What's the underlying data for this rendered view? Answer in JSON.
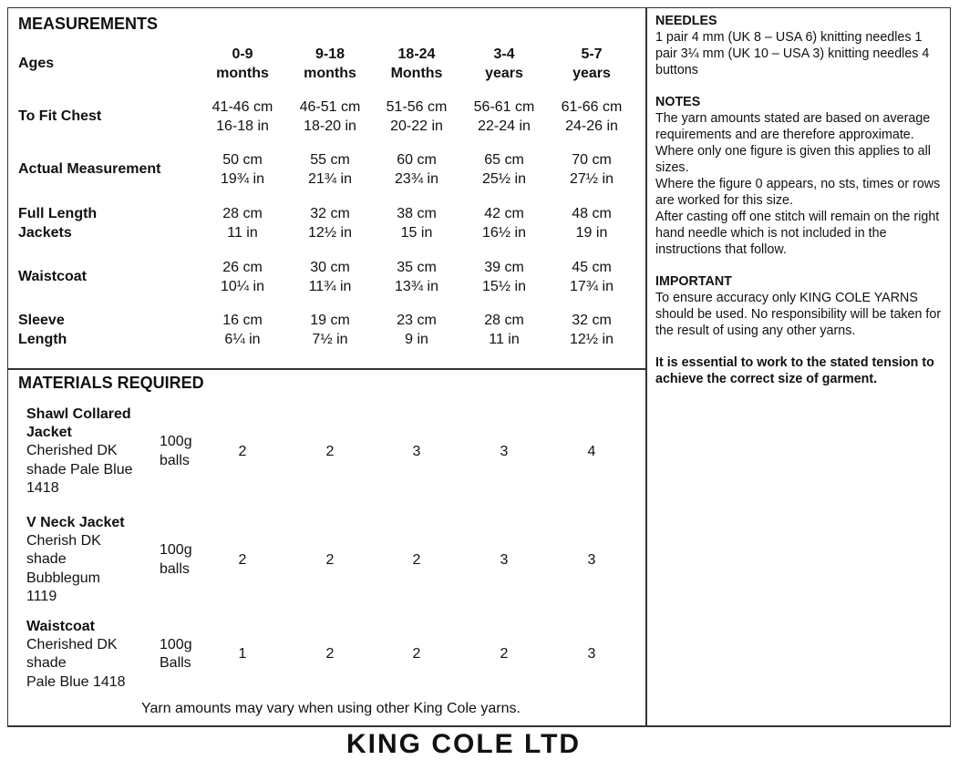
{
  "measurements": {
    "title": "MEASUREMENTS",
    "ages_label": "Ages",
    "ages": [
      [
        "0-9",
        "months"
      ],
      [
        "9-18",
        "months"
      ],
      [
        "18-24",
        "Months"
      ],
      [
        "3-4",
        "years"
      ],
      [
        "5-7",
        "years"
      ]
    ],
    "rows": [
      {
        "label": [
          "To Fit Chest"
        ],
        "values": [
          [
            "41-46 cm",
            "16-18 in"
          ],
          [
            "46-51 cm",
            "18-20 in"
          ],
          [
            "51-56 cm",
            "20-22 in"
          ],
          [
            "56-61 cm",
            "22-24 in"
          ],
          [
            "61-66 cm",
            "24-26 in"
          ]
        ]
      },
      {
        "label": [
          "Actual Measurement"
        ],
        "values": [
          [
            "50 cm",
            "19¾ in"
          ],
          [
            "55 cm",
            "21¾ in"
          ],
          [
            "60 cm",
            "23¾ in"
          ],
          [
            "65 cm",
            "25½ in"
          ],
          [
            "70 cm",
            "27½ in"
          ]
        ]
      },
      {
        "label": [
          "Full Length",
          "Jackets"
        ],
        "values": [
          [
            "28 cm",
            "11 in"
          ],
          [
            "32 cm",
            "12½ in"
          ],
          [
            "38 cm",
            "15 in"
          ],
          [
            "42 cm",
            "16½ in"
          ],
          [
            "48 cm",
            "19 in"
          ]
        ]
      },
      {
        "label": [
          "Waistcoat"
        ],
        "values": [
          [
            "26 cm",
            "10¼ in"
          ],
          [
            "30 cm",
            "11¾ in"
          ],
          [
            "35 cm",
            "13¾ in"
          ],
          [
            "39 cm",
            "15½ in"
          ],
          [
            "45 cm",
            "17¾ in"
          ]
        ]
      },
      {
        "label": [
          "Sleeve",
          "Length"
        ],
        "values": [
          [
            "16 cm",
            "6¼ in"
          ],
          [
            "19 cm",
            "7½ in"
          ],
          [
            "23 cm",
            "9 in"
          ],
          [
            "28 cm",
            "11 in"
          ],
          [
            "32 cm",
            "12½ in"
          ]
        ]
      }
    ]
  },
  "materials": {
    "title": "MATERIALS REQUIRED",
    "items": [
      {
        "name": [
          "Shawl Collared",
          "Jacket"
        ],
        "desc": [
          "Cherished DK",
          "shade Pale Blue",
          "1418"
        ],
        "unit": [
          "100g",
          "balls"
        ],
        "values": [
          "2",
          "2",
          "3",
          "3",
          "4"
        ]
      },
      {
        "name": [
          "V Neck Jacket"
        ],
        "desc": [
          "Cherish DK",
          "shade",
          "Bubblegum",
          "1119"
        ],
        "unit": [
          "100g",
          "balls"
        ],
        "values": [
          "2",
          "2",
          "2",
          "3",
          "3"
        ]
      },
      {
        "name": [
          "Waistcoat"
        ],
        "desc": [
          "Cherished DK",
          "shade",
          "Pale Blue 1418"
        ],
        "unit": [
          "100g",
          "Balls"
        ],
        "values": [
          "1",
          "2",
          "2",
          "2",
          "3"
        ]
      }
    ],
    "note": "Yarn amounts may vary when using other King Cole yarns."
  },
  "sidebar": {
    "needles_title": "NEEDLES",
    "needles": "1 pair 4 mm (UK 8 – USA 6) knitting needles 1 pair 3¼ mm (UK 10 – USA 3) knitting needles 4 buttons",
    "notes_title": "NOTES",
    "notes": [
      "The yarn amounts stated are based on average requirements and are therefore approximate.",
      "Where only one figure is given this applies to all sizes.",
      "Where the figure 0 appears, no sts, times or rows are worked for this size.",
      "After casting off one stitch will remain on the right hand needle which is not included in the instructions that follow."
    ],
    "important_title": "IMPORTANT",
    "important": "To ensure accuracy only KING COLE YARNS should be used. No responsibility will be taken for the result of using any other yarns.",
    "tension": "It is essential to work to the stated tension to achieve the correct size of garment."
  },
  "footer_logo": "KING COLE LTD"
}
